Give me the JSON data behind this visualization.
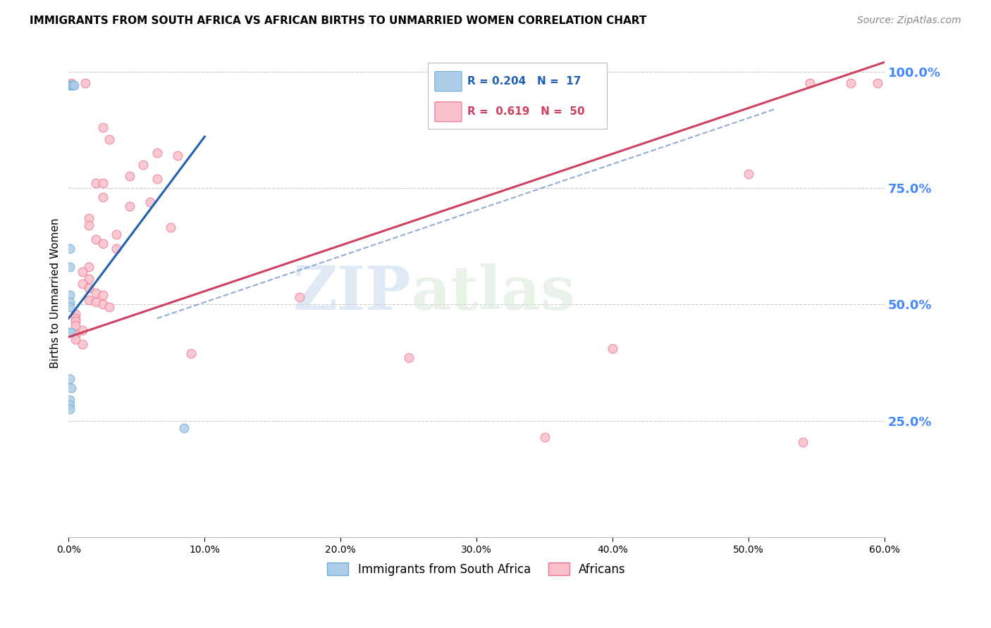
{
  "title": "IMMIGRANTS FROM SOUTH AFRICA VS AFRICAN BIRTHS TO UNMARRIED WOMEN CORRELATION CHART",
  "source": "Source: ZipAtlas.com",
  "ylabel": "Births to Unmarried Women",
  "legend_blue_label": "Immigrants from South Africa",
  "legend_pink_label": "Africans",
  "legend_blue_text": "R = 0.204   N =  17",
  "legend_pink_text": "R =  0.619   N =  50",
  "blue_points": [
    [
      0.001,
      0.97
    ],
    [
      0.002,
      0.97
    ],
    [
      0.003,
      0.97
    ],
    [
      0.004,
      0.97
    ],
    [
      0.001,
      0.62
    ],
    [
      0.001,
      0.58
    ],
    [
      0.001,
      0.52
    ],
    [
      0.001,
      0.505
    ],
    [
      0.001,
      0.495
    ],
    [
      0.001,
      0.44
    ],
    [
      0.002,
      0.44
    ],
    [
      0.001,
      0.34
    ],
    [
      0.002,
      0.32
    ],
    [
      0.001,
      0.295
    ],
    [
      0.001,
      0.285
    ],
    [
      0.001,
      0.275
    ],
    [
      0.085,
      0.235
    ]
  ],
  "pink_points": [
    [
      0.002,
      0.975
    ],
    [
      0.012,
      0.975
    ],
    [
      0.025,
      0.88
    ],
    [
      0.03,
      0.855
    ],
    [
      0.065,
      0.825
    ],
    [
      0.08,
      0.82
    ],
    [
      0.055,
      0.8
    ],
    [
      0.045,
      0.775
    ],
    [
      0.065,
      0.77
    ],
    [
      0.02,
      0.76
    ],
    [
      0.025,
      0.76
    ],
    [
      0.025,
      0.73
    ],
    [
      0.06,
      0.72
    ],
    [
      0.045,
      0.71
    ],
    [
      0.015,
      0.685
    ],
    [
      0.015,
      0.67
    ],
    [
      0.075,
      0.665
    ],
    [
      0.035,
      0.65
    ],
    [
      0.02,
      0.64
    ],
    [
      0.025,
      0.63
    ],
    [
      0.035,
      0.62
    ],
    [
      0.015,
      0.58
    ],
    [
      0.01,
      0.57
    ],
    [
      0.015,
      0.555
    ],
    [
      0.01,
      0.545
    ],
    [
      0.015,
      0.535
    ],
    [
      0.02,
      0.525
    ],
    [
      0.025,
      0.52
    ],
    [
      0.015,
      0.51
    ],
    [
      0.02,
      0.505
    ],
    [
      0.025,
      0.5
    ],
    [
      0.03,
      0.495
    ],
    [
      0.005,
      0.48
    ],
    [
      0.005,
      0.47
    ],
    [
      0.005,
      0.465
    ],
    [
      0.005,
      0.455
    ],
    [
      0.01,
      0.445
    ],
    [
      0.005,
      0.435
    ],
    [
      0.005,
      0.425
    ],
    [
      0.01,
      0.415
    ],
    [
      0.17,
      0.515
    ],
    [
      0.09,
      0.395
    ],
    [
      0.25,
      0.385
    ],
    [
      0.35,
      0.215
    ],
    [
      0.5,
      0.78
    ],
    [
      0.545,
      0.975
    ],
    [
      0.575,
      0.975
    ],
    [
      0.595,
      0.975
    ],
    [
      0.54,
      0.205
    ],
    [
      0.4,
      0.405
    ]
  ],
  "xlim": [
    0.0,
    0.6
  ],
  "ylim": [
    0.0,
    1.05
  ],
  "blue_color": "#aecde8",
  "blue_edge_color": "#6aadd5",
  "pink_color": "#f9c0cb",
  "pink_edge_color": "#f07090",
  "blue_line_color": "#2060b0",
  "pink_line_color": "#d04060",
  "blue_line_x": [
    0.0,
    0.1
  ],
  "blue_line_y": [
    0.47,
    0.86
  ],
  "pink_line_x": [
    0.0,
    0.6
  ],
  "pink_line_y": [
    0.43,
    1.02
  ],
  "dash_line_x": [
    0.065,
    0.52
  ],
  "dash_line_y": [
    0.47,
    0.92
  ],
  "dash_color": "#7799cc",
  "grid_color": "#cccccc",
  "right_label_color": "#4488ff",
  "background_color": "#ffffff",
  "marker_size": 85
}
